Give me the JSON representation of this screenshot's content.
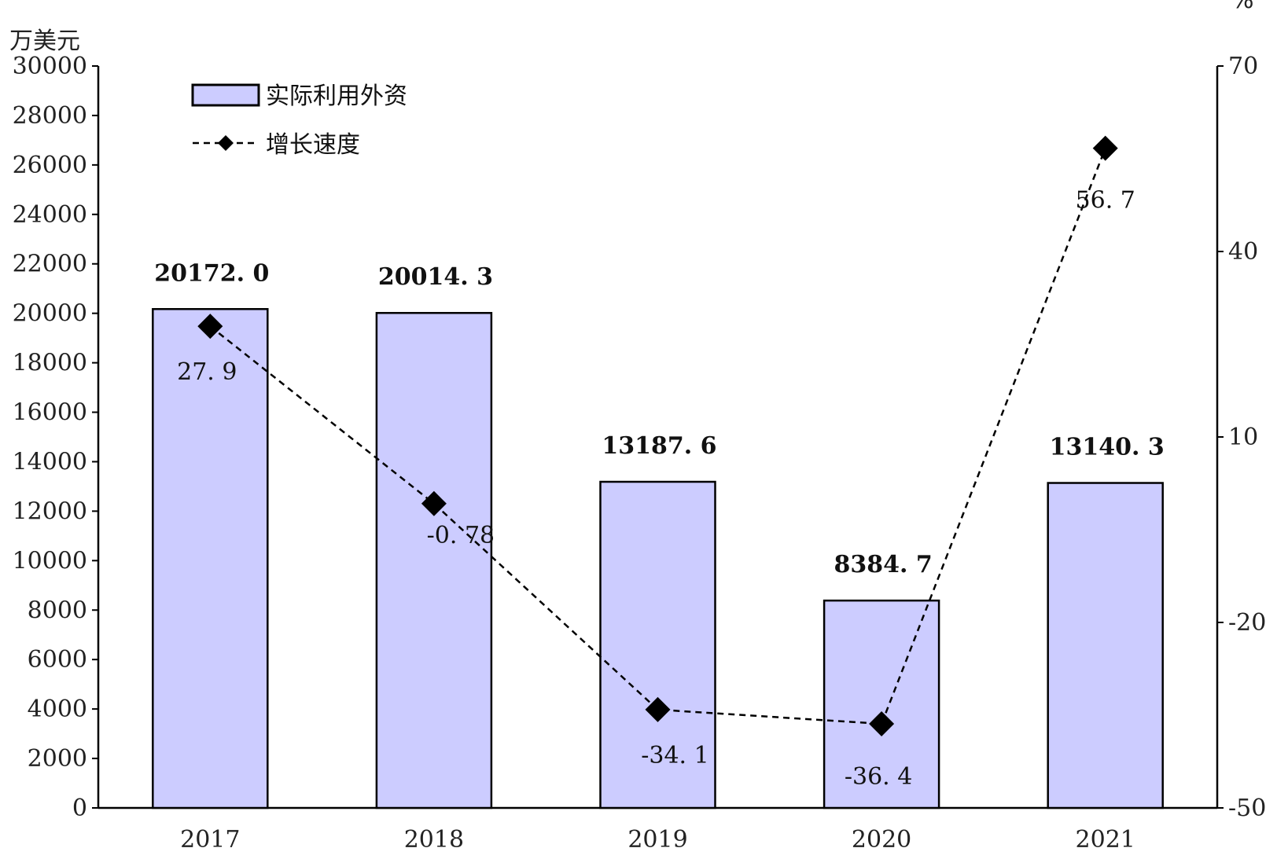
{
  "chart_data": {
    "type": "bar",
    "categories": [
      "2017",
      "2018",
      "2019",
      "2020",
      "2021"
    ],
    "y_left": {
      "unit": "万美元",
      "min": 0,
      "max": 30000,
      "step": 2000
    },
    "y_right": {
      "unit": "%",
      "min": -50,
      "max": 70,
      "step": 30
    },
    "series": [
      {
        "name": "实际利用外资",
        "type": "bar",
        "axis": "left",
        "values": [
          20172.0,
          20014.3,
          13187.6,
          8384.7,
          13140.3
        ],
        "labels": [
          "20172. 0",
          "20014. 3",
          "13187. 6",
          "8384. 7",
          "13140. 3"
        ]
      },
      {
        "name": "增长速度",
        "type": "line",
        "axis": "right",
        "values": [
          27.9,
          -0.78,
          -34.1,
          -36.4,
          56.7
        ],
        "labels": [
          "27. 9",
          "-0. 78",
          "-34. 1",
          "-36. 4",
          "56. 7"
        ]
      }
    ],
    "colors": {
      "bar_fill": "#ccccff",
      "bar_stroke": "#000000",
      "line": "#000000"
    },
    "legend": "top-left",
    "grid": false
  }
}
